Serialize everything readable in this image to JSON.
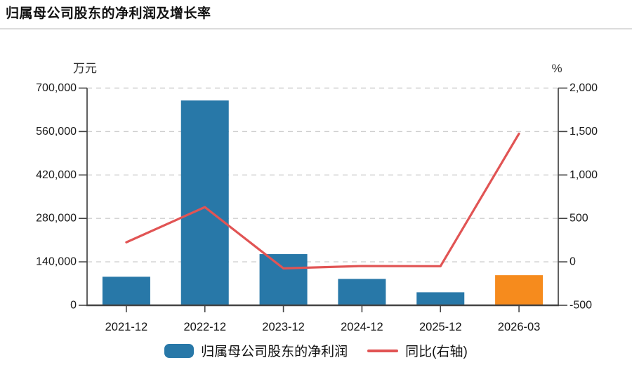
{
  "page": {
    "title": "归属母公司股东的净利润及增长率"
  },
  "colors": {
    "bar": "#2878a8",
    "bar_highlight": "#f68b1d",
    "line": "#e15454",
    "grid": "#cfcfcf",
    "axis": "#444444",
    "tick_text": "#1a1a1a"
  },
  "chart_data": {
    "type": "bar",
    "subtype": "bar+line dual-axis combo",
    "title": "归属母公司股东的净利润及增长率",
    "categories": [
      "2021-12",
      "2022-12",
      "2023-12",
      "2024-12",
      "2025-12",
      "2026-03"
    ],
    "series": [
      {
        "name": "归属母公司股东的净利润",
        "type": "bar",
        "axis": "left",
        "unit": "万元",
        "color": "#2878a8",
        "values": [
          92000,
          660000,
          165000,
          85000,
          42000,
          97000
        ],
        "item_colors": [
          "#2878a8",
          "#2878a8",
          "#2878a8",
          "#2878a8",
          "#2878a8",
          "#f68b1d"
        ]
      },
      {
        "name": "同比(右轴)",
        "type": "line",
        "axis": "right",
        "unit": "%",
        "color": "#e15454",
        "values": [
          225,
          630,
          -75,
          -48,
          -50,
          1475
        ]
      }
    ],
    "left_axis": {
      "label": "万元",
      "min": 0,
      "max": 700000,
      "step": 140000,
      "tick_labels": [
        "0",
        "140,000",
        "280,000",
        "420,000",
        "560,000",
        "700,000"
      ]
    },
    "right_axis": {
      "label": "%",
      "min": -500,
      "max": 2000,
      "step": 500,
      "tick_labels": [
        "-500",
        "0",
        "500",
        "1,000",
        "1,500",
        "2,000"
      ]
    },
    "grid": "horizontal dashed",
    "legend_position": "bottom center"
  }
}
